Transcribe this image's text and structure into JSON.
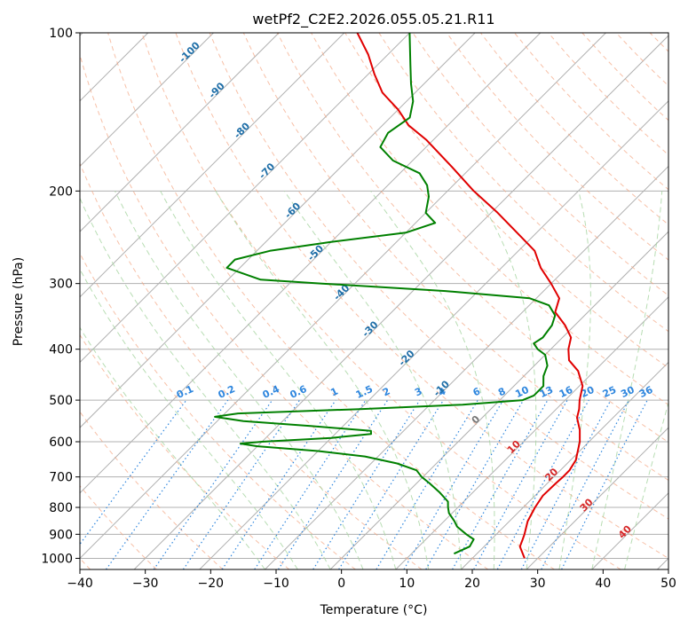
{
  "chart_data": {
    "type": "line",
    "chart_kind": "skew-T log-P sounding",
    "title": "wetPf2_C2E2.2026.055.05.21.R11",
    "xlabel": "Temperature (°C)",
    "ylabel": "Pressure (hPa)",
    "xlim": [
      -40,
      50
    ],
    "ylim": [
      1050,
      100
    ],
    "y_scale": "log",
    "x_ticks": [
      -40,
      -30,
      -20,
      -10,
      0,
      10,
      20,
      30,
      40,
      50
    ],
    "y_ticks": [
      1000,
      900,
      800,
      700,
      600,
      500,
      400,
      300,
      200,
      100
    ],
    "grid": true,
    "series": [
      {
        "color": "#e00000",
        "points": [
          {
            "p": 1000,
            "t": 28
          },
          {
            "p": 950,
            "t": 25.5
          },
          {
            "p": 920,
            "t": 24.8
          },
          {
            "p": 900,
            "t": 24.3
          },
          {
            "p": 850,
            "t": 22.8
          },
          {
            "p": 800,
            "t": 21.8
          },
          {
            "p": 760,
            "t": 21.2
          },
          {
            "p": 720,
            "t": 21.3
          },
          {
            "p": 700,
            "t": 21.4
          },
          {
            "p": 680,
            "t": 21.4
          },
          {
            "p": 650,
            "t": 20.8
          },
          {
            "p": 620,
            "t": 19.5
          },
          {
            "p": 600,
            "t": 18.6
          },
          {
            "p": 570,
            "t": 16.8
          },
          {
            "p": 540,
            "t": 14.5
          },
          {
            "p": 520,
            "t": 13.5
          },
          {
            "p": 500,
            "t": 12.2
          },
          {
            "p": 470,
            "t": 10.5
          },
          {
            "p": 440,
            "t": 7.5
          },
          {
            "p": 420,
            "t": 4.5
          },
          {
            "p": 400,
            "t": 2.7
          },
          {
            "p": 380,
            "t": 1.3
          },
          {
            "p": 360,
            "t": -1.5
          },
          {
            "p": 340,
            "t": -5.0
          },
          {
            "p": 320,
            "t": -6.5
          },
          {
            "p": 300,
            "t": -10.0
          },
          {
            "p": 280,
            "t": -14.0
          },
          {
            "p": 260,
            "t": -17.5
          },
          {
            "p": 240,
            "t": -23.0
          },
          {
            "p": 220,
            "t": -29.0
          },
          {
            "p": 200,
            "t": -36.0
          },
          {
            "p": 180,
            "t": -43.0
          },
          {
            "p": 160,
            "t": -51.0
          },
          {
            "p": 150,
            "t": -56.0
          },
          {
            "p": 140,
            "t": -60.0
          },
          {
            "p": 130,
            "t": -65.0
          },
          {
            "p": 120,
            "t": -69.0
          },
          {
            "p": 110,
            "t": -73.0
          },
          {
            "p": 100,
            "t": -78.0
          }
        ]
      },
      {
        "color": "#008000",
        "points": [
          {
            "p": 980,
            "t": 16.5
          },
          {
            "p": 950,
            "t": 17.8
          },
          {
            "p": 920,
            "t": 17.3
          },
          {
            "p": 900,
            "t": 15.4
          },
          {
            "p": 870,
            "t": 12.8
          },
          {
            "p": 850,
            "t": 11.6
          },
          {
            "p": 820,
            "t": 9.5
          },
          {
            "p": 800,
            "t": 8.5
          },
          {
            "p": 780,
            "t": 7.6
          },
          {
            "p": 750,
            "t": 5.0
          },
          {
            "p": 720,
            "t": 2.0
          },
          {
            "p": 700,
            "t": -0.2
          },
          {
            "p": 680,
            "t": -2.0
          },
          {
            "p": 660,
            "t": -6.0
          },
          {
            "p": 640,
            "t": -12.0
          },
          {
            "p": 625,
            "t": -20.0
          },
          {
            "p": 612,
            "t": -30.0
          },
          {
            "p": 605,
            "t": -33.0
          },
          {
            "p": 600,
            "t": -30.0
          },
          {
            "p": 590,
            "t": -20.0
          },
          {
            "p": 580,
            "t": -14.5
          },
          {
            "p": 572,
            "t": -15.0
          },
          {
            "p": 560,
            "t": -25.0
          },
          {
            "p": 548,
            "t": -36.0
          },
          {
            "p": 538,
            "t": -41.0
          },
          {
            "p": 530,
            "t": -38.0
          },
          {
            "p": 520,
            "t": -20.0
          },
          {
            "p": 510,
            "t": -5.0
          },
          {
            "p": 500,
            "t": 3.5
          },
          {
            "p": 490,
            "t": 4.5
          },
          {
            "p": 470,
            "t": 4.5
          },
          {
            "p": 450,
            "t": 3.0
          },
          {
            "p": 430,
            "t": 2.0
          },
          {
            "p": 410,
            "t": 0.0
          },
          {
            "p": 400,
            "t": -2.0
          },
          {
            "p": 390,
            "t": -3.5
          },
          {
            "p": 380,
            "t": -3.0
          },
          {
            "p": 360,
            "t": -3.5
          },
          {
            "p": 345,
            "t": -4.5
          },
          {
            "p": 330,
            "t": -7.0
          },
          {
            "p": 320,
            "t": -11.0
          },
          {
            "p": 310,
            "t": -25.0
          },
          {
            "p": 300,
            "t": -45.0
          },
          {
            "p": 295,
            "t": -55.0
          },
          {
            "p": 280,
            "t": -62.0
          },
          {
            "p": 270,
            "t": -62.0
          },
          {
            "p": 260,
            "t": -58.0
          },
          {
            "p": 250,
            "t": -50.0
          },
          {
            "p": 240,
            "t": -40.0
          },
          {
            "p": 230,
            "t": -37.0
          },
          {
            "p": 220,
            "t": -40.0
          },
          {
            "p": 205,
            "t": -42.0
          },
          {
            "p": 195,
            "t": -44.0
          },
          {
            "p": 185,
            "t": -47.0
          },
          {
            "p": 175,
            "t": -53.0
          },
          {
            "p": 165,
            "t": -57.0
          },
          {
            "p": 155,
            "t": -58.0
          },
          {
            "p": 145,
            "t": -57.0
          },
          {
            "p": 135,
            "t": -59.0
          },
          {
            "p": 125,
            "t": -62.0
          },
          {
            "p": 115,
            "t": -65.0
          },
          {
            "p": 100,
            "t": -70.0
          }
        ]
      }
    ],
    "dry_adiabat_labels": [
      {
        "text": "-100",
        "p": 110,
        "t": -100
      },
      {
        "text": "-90",
        "p": 130,
        "t": -90
      },
      {
        "text": "-80",
        "p": 155,
        "t": -80
      },
      {
        "text": "-70",
        "p": 185,
        "t": -70
      },
      {
        "text": "-60",
        "p": 220,
        "t": -60
      },
      {
        "text": "-50",
        "p": 265,
        "t": -50
      },
      {
        "text": "-40",
        "p": 315,
        "t": -40
      },
      {
        "text": "-30",
        "p": 370,
        "t": -30
      },
      {
        "text": "-20",
        "p": 420,
        "t": -20
      },
      {
        "text": "-10",
        "p": 480,
        "t": -10
      }
    ],
    "mixing_ratio_labels": [
      "0.1",
      "0.2",
      "0.4",
      "0.6",
      "1",
      "1.5",
      "2",
      "3",
      "4",
      "6",
      "8",
      "10",
      "13",
      "16",
      "20",
      "25",
      "30",
      "36"
    ],
    "moist_adiabat_labels": [
      {
        "text": "0",
        "p": 550,
        "t": 0
      },
      {
        "text": "10",
        "p": 620,
        "t": 10
      },
      {
        "text": "20",
        "p": 700,
        "t": 20
      },
      {
        "text": "30",
        "p": 800,
        "t": 30
      },
      {
        "text": "40",
        "p": 900,
        "t": 40
      }
    ]
  }
}
